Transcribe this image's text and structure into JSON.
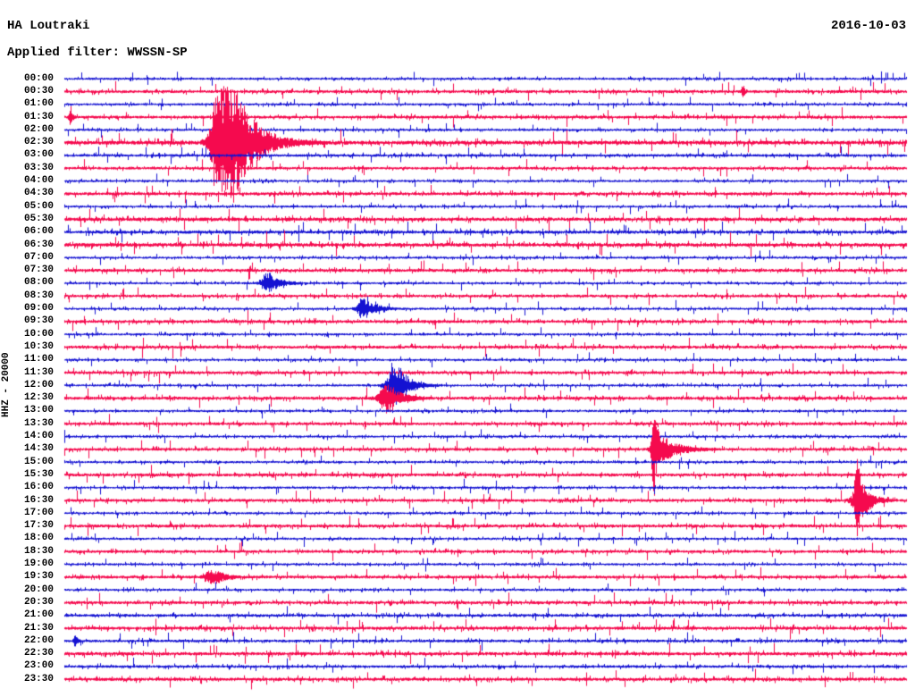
{
  "header": {
    "station": "HA Loutraki",
    "date": "2016-10-03",
    "filter_label": "Applied filter: WWSSN-SP",
    "axis_scale_label": "HHZ - 20000"
  },
  "colors": {
    "trace_blue": "#1412d2",
    "trace_red": "#f50a4e",
    "text": "#000000",
    "background": "#ffffff"
  },
  "chart_data": {
    "type": "line",
    "subtype": "helicorder",
    "title": "HA Loutraki",
    "date": "2016-10-03",
    "filter": "WWSSN-SP",
    "channel_and_scale": "HHZ - 20000",
    "minutes_per_row": 30,
    "rows_total": 48,
    "row_color_pattern": [
      "blue",
      "red"
    ],
    "row_labels": [
      "00:00",
      "00:30",
      "01:00",
      "01:30",
      "02:00",
      "02:30",
      "03:00",
      "03:30",
      "04:00",
      "04:30",
      "05:00",
      "05:30",
      "06:00",
      "06:30",
      "07:00",
      "07:30",
      "08:00",
      "08:30",
      "09:00",
      "09:30",
      "10:00",
      "10:30",
      "11:00",
      "11:30",
      "12:00",
      "12:30",
      "13:00",
      "13:30",
      "14:00",
      "14:30",
      "15:00",
      "15:30",
      "16:00",
      "16:30",
      "17:00",
      "17:30",
      "18:00",
      "18:30",
      "19:00",
      "19:30",
      "20:00",
      "20:30",
      "21:00",
      "21:30",
      "22:00",
      "22:30",
      "23:00",
      "23:30"
    ],
    "base_noise": {
      "blue": 0.95,
      "red": 1.15
    },
    "noise_overrides": {
      "1": 1.25,
      "3": 1.25,
      "5": 1.7,
      "6": 1.15,
      "9": 1.3,
      "11": 1.5,
      "12": 1.35,
      "13": 1.55,
      "15": 1.3,
      "19": 1.3,
      "21": 1.3,
      "23": 1.25,
      "25": 1.35,
      "27": 1.25,
      "29": 1.2,
      "31": 1.3,
      "33": 1.25,
      "35": 1.3,
      "37": 1.2,
      "39": 1.25,
      "41": 1.3,
      "42": 1.2,
      "43": 1.35,
      "44": 1.15,
      "45": 1.4,
      "46": 1.1,
      "47": 1.35
    },
    "events": [
      {
        "row": 5,
        "row_label": "02:30",
        "pos": 0.178,
        "amp": 62,
        "attack": 4,
        "core": 24,
        "decay": 22,
        "note": "large local earthquake"
      },
      {
        "row": 16,
        "row_label": "08:00",
        "pos": 0.237,
        "amp": 11,
        "attack": 3,
        "core": 6,
        "decay": 12,
        "note": "small event"
      },
      {
        "row": 18,
        "row_label": "09:00",
        "pos": 0.351,
        "amp": 11,
        "attack": 3,
        "core": 6,
        "decay": 12,
        "note": "small event"
      },
      {
        "row": 24,
        "row_label": "12:00",
        "pos": 0.388,
        "amp": 23,
        "attack": 4,
        "core": 8,
        "decay": 13,
        "note": "moderate event"
      },
      {
        "row": 25,
        "row_label": "12:30",
        "pos": 0.378,
        "amp": 15,
        "attack": 4,
        "core": 8,
        "decay": 13,
        "note": "moderate event"
      },
      {
        "row": 29,
        "row_label": "14:30",
        "pos": 0.699,
        "amp": 20,
        "attack": 2,
        "core": 4,
        "decay": 18,
        "note": "event body with coda"
      },
      {
        "row": 29,
        "row_label": "14:30",
        "pos": 0.699,
        "amp": 48,
        "attack": 1,
        "core": 1,
        "decay": 2,
        "note": "tall narrow spike"
      },
      {
        "row": 33,
        "row_label": "16:30",
        "pos": 0.94,
        "amp": 27,
        "attack": 3,
        "core": 7,
        "decay": 9,
        "note": "event near right edge"
      },
      {
        "row": 33,
        "row_label": "16:30",
        "pos": 0.94,
        "amp": 36,
        "attack": 1,
        "core": 1,
        "decay": 2,
        "note": "tall narrow spike"
      },
      {
        "row": 39,
        "row_label": "19:30",
        "pos": 0.171,
        "amp": 7,
        "attack": 4,
        "core": 10,
        "decay": 10,
        "note": "small event"
      },
      {
        "row": 44,
        "row_label": "22:00",
        "pos": 0.012,
        "amp": 7,
        "attack": 1,
        "core": 1,
        "decay": 2,
        "note": "small spike"
      },
      {
        "row": 3,
        "row_label": "01:30",
        "pos": 0.006,
        "amp": 8,
        "attack": 1,
        "core": 1,
        "decay": 2,
        "note": "small spike"
      },
      {
        "row": 1,
        "row_label": "00:30",
        "pos": 0.805,
        "amp": 6,
        "attack": 1,
        "core": 1,
        "decay": 2,
        "note": "small spike"
      }
    ]
  }
}
